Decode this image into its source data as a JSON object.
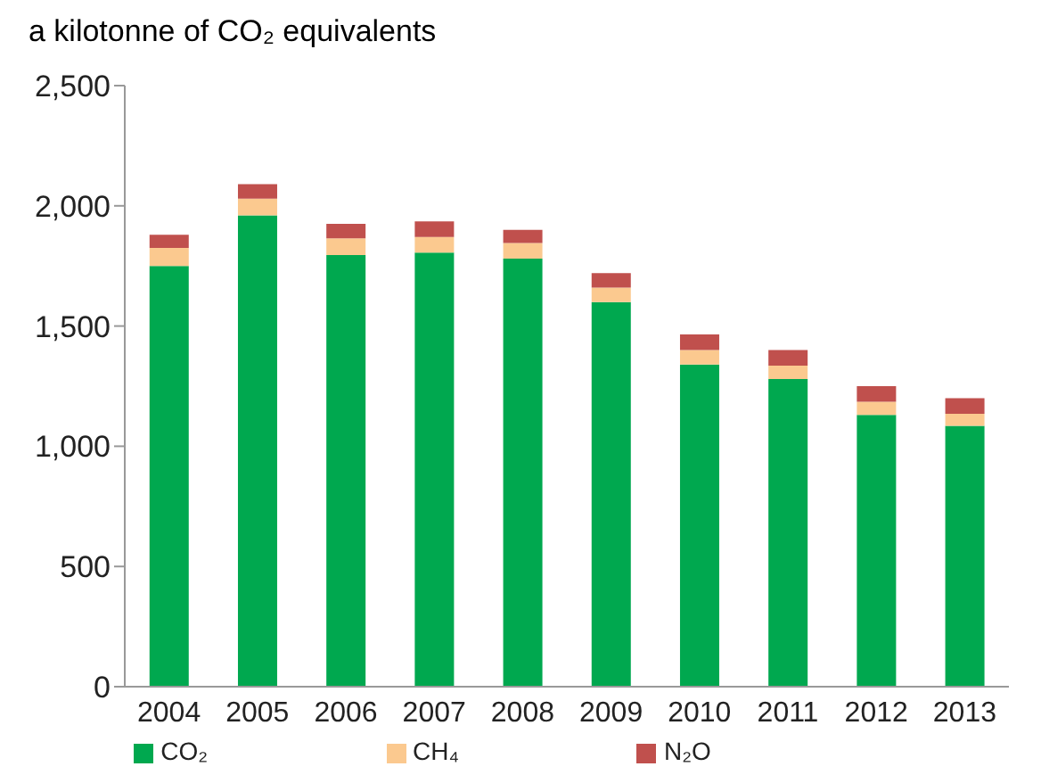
{
  "chart_data": {
    "type": "bar",
    "title": "a kilotonne of CO₂ equivalents",
    "stacked": true,
    "categories": [
      "2004",
      "2005",
      "2006",
      "2007",
      "2008",
      "2009",
      "2010",
      "2011",
      "2012",
      "2013"
    ],
    "series": [
      {
        "name": "CO₂",
        "color": "#00a84f",
        "values": [
          1750,
          1960,
          1795,
          1805,
          1780,
          1600,
          1340,
          1280,
          1130,
          1085
        ]
      },
      {
        "name": "CH₄",
        "color": "#fbc98f",
        "values": [
          75,
          70,
          70,
          65,
          65,
          60,
          60,
          55,
          55,
          50
        ]
      },
      {
        "name": "N₂O",
        "color": "#c0504d",
        "values": [
          55,
          60,
          60,
          65,
          55,
          60,
          65,
          65,
          65,
          65
        ]
      }
    ],
    "ylim": [
      0,
      2500
    ],
    "yticks": [
      0,
      500,
      {
        "value": 1000,
        "label": "1,000"
      },
      {
        "value": 1500,
        "label": "1,500"
      },
      {
        "value": 2000,
        "label": "2,000"
      },
      {
        "value": 2500,
        "label": "2,500"
      }
    ],
    "grid": false,
    "legend": "bottom"
  }
}
